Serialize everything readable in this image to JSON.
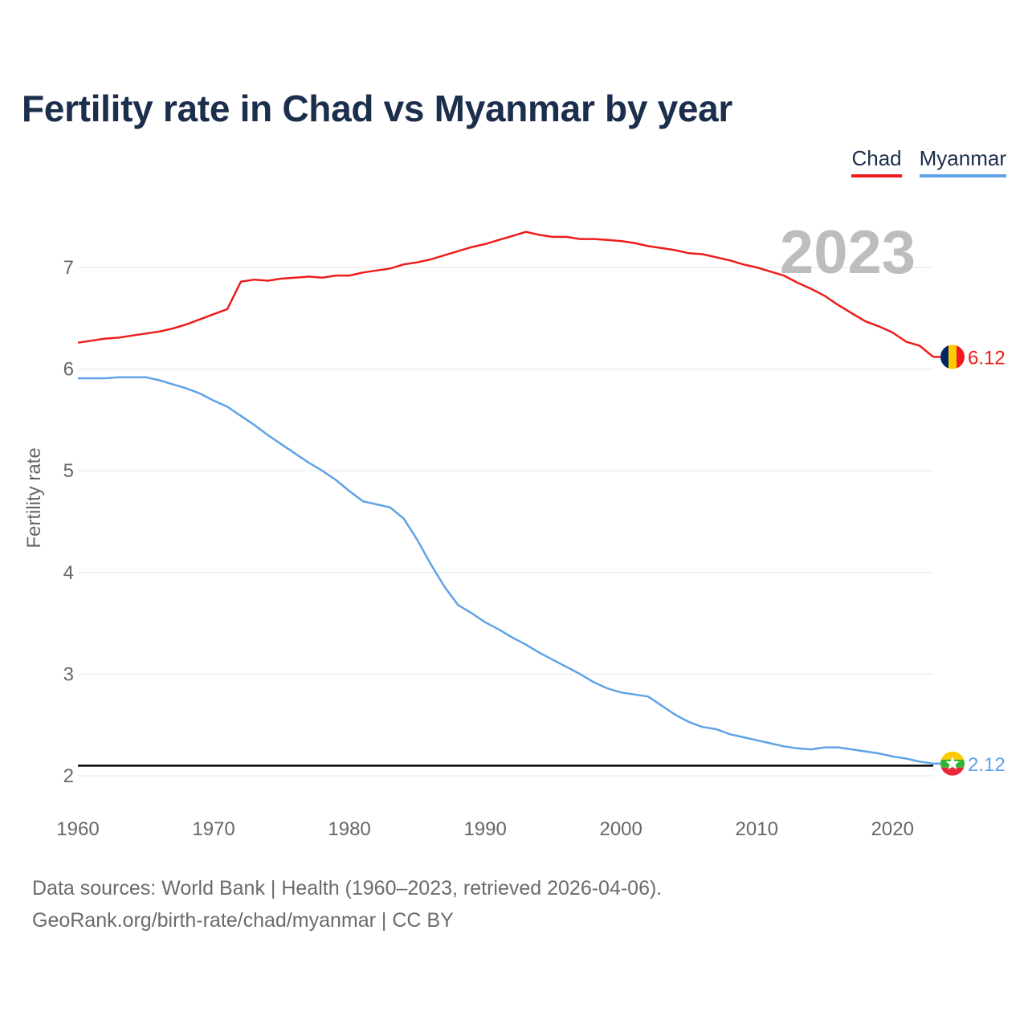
{
  "header": {
    "title": "Fertility rate in Chad vs Myanmar by year"
  },
  "legend": {
    "items": [
      {
        "label": "Chad",
        "color": "#ee1c1c"
      },
      {
        "label": "Myanmar",
        "color": "#5fa3e6"
      }
    ]
  },
  "footer": {
    "source_line": "Data sources: World Bank | Health (1960–2023, retrieved 2026-04-06).",
    "credit_line": "GeoRank.org/birth-rate/chad/myanmar | CC BY"
  },
  "chart_data": {
    "type": "line",
    "title": "Fertility rate in Chad vs Myanmar by year",
    "xlabel": "",
    "ylabel": "Fertility rate",
    "xlim": [
      1960,
      2023
    ],
    "ylim": [
      1.9,
      7.5
    ],
    "x_ticks": [
      1960,
      1970,
      1980,
      1990,
      2000,
      2010,
      2020
    ],
    "y_ticks": [
      2,
      3,
      4,
      5,
      6,
      7
    ],
    "grid": true,
    "current_year": "2023",
    "reference_line": {
      "value": 2.1,
      "color": "#000000"
    },
    "x": [
      1960,
      1961,
      1962,
      1963,
      1964,
      1965,
      1966,
      1967,
      1968,
      1969,
      1970,
      1971,
      1972,
      1973,
      1974,
      1975,
      1976,
      1977,
      1978,
      1979,
      1980,
      1981,
      1982,
      1983,
      1984,
      1985,
      1986,
      1987,
      1988,
      1989,
      1990,
      1991,
      1992,
      1993,
      1994,
      1995,
      1996,
      1997,
      1998,
      1999,
      2000,
      2001,
      2002,
      2003,
      2004,
      2005,
      2006,
      2007,
      2008,
      2009,
      2010,
      2011,
      2012,
      2013,
      2014,
      2015,
      2016,
      2017,
      2018,
      2019,
      2020,
      2021,
      2022,
      2023
    ],
    "series": [
      {
        "name": "Chad",
        "color": "#ee1c1c",
        "end_label": "6.12",
        "values": [
          6.26,
          6.28,
          6.3,
          6.31,
          6.33,
          6.35,
          6.37,
          6.4,
          6.44,
          6.49,
          6.54,
          6.59,
          6.86,
          6.88,
          6.87,
          6.89,
          6.9,
          6.91,
          6.9,
          6.92,
          6.92,
          6.95,
          6.97,
          6.99,
          7.03,
          7.05,
          7.08,
          7.12,
          7.16,
          7.2,
          7.23,
          7.27,
          7.31,
          7.35,
          7.32,
          7.3,
          7.3,
          7.28,
          7.28,
          7.27,
          7.26,
          7.24,
          7.21,
          7.19,
          7.17,
          7.14,
          7.13,
          7.1,
          7.07,
          7.03,
          7.0,
          6.96,
          6.92,
          6.85,
          6.79,
          6.72,
          6.63,
          6.55,
          6.47,
          6.42,
          6.36,
          6.27,
          6.23,
          6.12
        ]
      },
      {
        "name": "Myanmar",
        "color": "#5fa3e6",
        "end_label": "2.12",
        "values": [
          5.91,
          5.91,
          5.91,
          5.92,
          5.92,
          5.92,
          5.89,
          5.85,
          5.81,
          5.76,
          5.69,
          5.63,
          5.54,
          5.45,
          5.35,
          5.26,
          5.17,
          5.08,
          5.0,
          4.91,
          4.8,
          4.7,
          4.67,
          4.64,
          4.53,
          4.32,
          4.08,
          3.86,
          3.68,
          3.6,
          3.51,
          3.44,
          3.36,
          3.29,
          3.21,
          3.14,
          3.07,
          3.0,
          2.92,
          2.86,
          2.82,
          2.8,
          2.78,
          2.69,
          2.6,
          2.53,
          2.48,
          2.46,
          2.41,
          2.38,
          2.35,
          2.32,
          2.29,
          2.27,
          2.26,
          2.28,
          2.28,
          2.26,
          2.24,
          2.22,
          2.19,
          2.17,
          2.14,
          2.12
        ]
      }
    ]
  }
}
